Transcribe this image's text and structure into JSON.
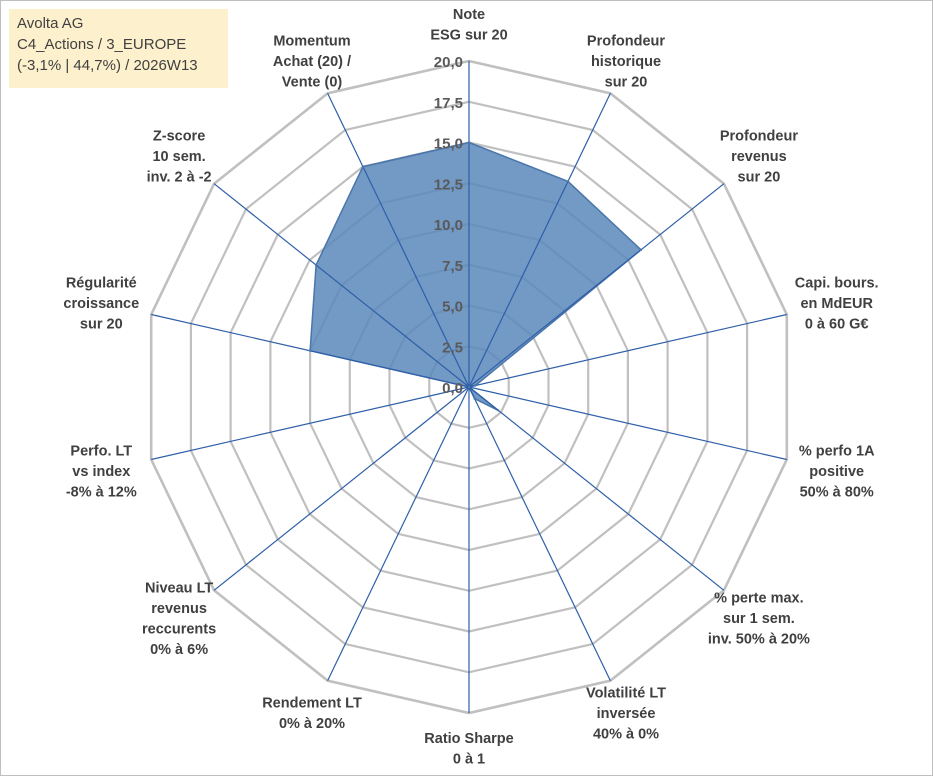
{
  "info_box": {
    "line1": "Avolta AG",
    "line2": "C4_Actions / 3_EUROPE",
    "line3": "(-3,1% | 44,7%) / 2026W13"
  },
  "colors": {
    "fill": "#5a87bb",
    "fill_stroke": "#4a76aa",
    "axis": "#2e5fa8",
    "grid": "#c0c0c0",
    "info_bg": "#fdf0cc"
  },
  "chart_data": {
    "type": "radar",
    "title": "",
    "range": [
      0,
      20
    ],
    "ticks": [
      "0,0",
      "2,5",
      "5,0",
      "7,5",
      "10,0",
      "12,5",
      "15,0",
      "17,5",
      "20,0"
    ],
    "axes": [
      {
        "lines": [
          "Note",
          "ESG sur 20"
        ],
        "value": 15.0
      },
      {
        "lines": [
          "Profondeur",
          "historique",
          "sur 20"
        ],
        "value": 14.0
      },
      {
        "lines": [
          "Profondeur",
          "revenus",
          "sur 20"
        ],
        "value": 13.5
      },
      {
        "lines": [
          "Capi. bours.",
          "en MdEUR",
          "0 à 60 G€"
        ],
        "value": 0.4
      },
      {
        "lines": [
          "% perfo 1A",
          "positive",
          "50% à 80%"
        ],
        "value": 0.0
      },
      {
        "lines": [
          "% perte max.",
          "sur 1 sem.",
          "inv. 50% à 20%"
        ],
        "value": 2.3
      },
      {
        "lines": [
          "Volatilité LT",
          "inversée",
          "40% à 0%"
        ],
        "value": 0.8
      },
      {
        "lines": [
          "Ratio Sharpe",
          "0 à 1"
        ],
        "value": 0.0
      },
      {
        "lines": [
          "Rendement LT",
          "0% à 20%"
        ],
        "value": 0.0
      },
      {
        "lines": [
          "Niveau LT",
          "revenus",
          "reccurents",
          "0% à 6%"
        ],
        "value": 0.0
      },
      {
        "lines": [
          "Perfo. LT",
          "vs index",
          "-8% à 12%"
        ],
        "value": 0.0
      },
      {
        "lines": [
          "Régularité",
          "croissance",
          "sur 20"
        ],
        "value": 10.0
      },
      {
        "lines": [
          "Z-score",
          "10 sem.",
          "inv. 2 à -2"
        ],
        "value": 12.0
      },
      {
        "lines": [
          "Momentum",
          "Achat (20) /",
          "Vente (0)"
        ],
        "value": 15.0
      }
    ]
  }
}
